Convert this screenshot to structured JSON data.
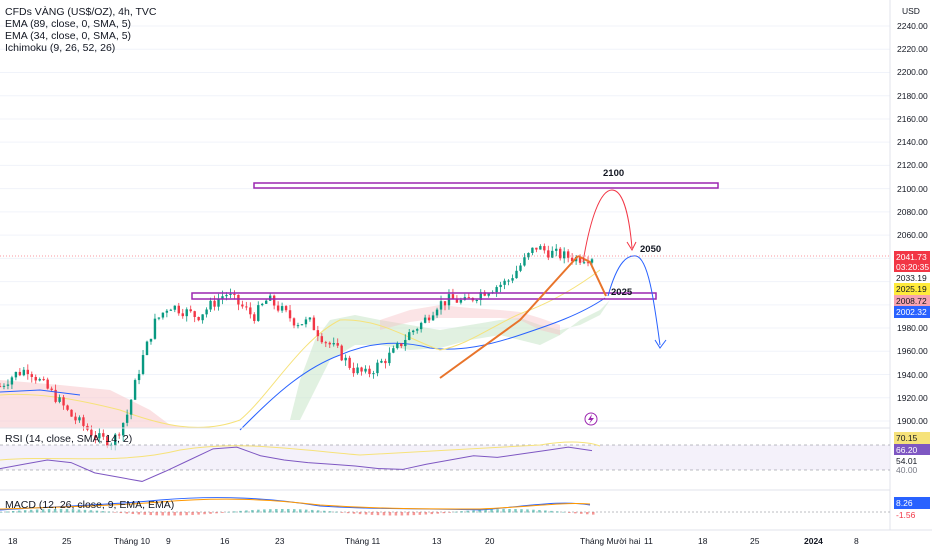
{
  "chart_data": {
    "type": "candlestick",
    "title": "CFDs VÀNG (US$/OZ), 4h, TVC",
    "currency": "USD",
    "indicators": [
      "EMA (89, close, 0, SMA, 5)",
      "EMA (34, close, 0, SMA, 5)",
      "Ichimoku (9, 26, 52, 26)"
    ],
    "ylim": [
      1880,
      2250
    ],
    "y_ticks": [
      "2240.00",
      "2220.00",
      "2200.00",
      "2180.00",
      "2160.00",
      "2140.00",
      "2120.00",
      "2100.00",
      "2080.00",
      "2060.00",
      "2040.00",
      "2020.00",
      "2000.00",
      "1980.00",
      "1960.00",
      "1940.00",
      "1920.00",
      "1900.00"
    ],
    "x_ticks": [
      "18",
      "25",
      "Tháng 10",
      "9",
      "16",
      "23",
      "Tháng 11",
      "13",
      "20",
      "Tháng Mười hai",
      "11",
      "18",
      "25",
      "2024",
      "8"
    ],
    "price_path": [
      1930,
      1940,
      1945,
      1932,
      1920,
      1905,
      1895,
      1885,
      1882,
      1905,
      1950,
      1985,
      2000,
      1995,
      1990,
      2000,
      2010,
      2000,
      1990,
      2005,
      1995,
      1985,
      1985,
      1970,
      1960,
      1945,
      1940,
      1950,
      1960,
      1975,
      1985,
      2000,
      2005,
      2002,
      2010,
      2015,
      2020,
      2035,
      2050,
      2045,
      2042,
      2040,
      2041.73
    ],
    "price_labels": [
      {
        "value": "2041.73",
        "sub": "03:20:35",
        "color": "#f23645"
      },
      {
        "value": "2033.19",
        "color": "#ffffff"
      },
      {
        "value": "2025.19",
        "color": "#ffeb3b"
      },
      {
        "value": "2008.72",
        "color": "#f7a3b0"
      },
      {
        "value": "2002.32",
        "color": "#2962ff"
      }
    ],
    "zones": [
      {
        "name": "2100",
        "low": 2100,
        "high": 2104
      },
      {
        "name": "2025",
        "low": 2025,
        "high": 2028
      }
    ],
    "annotations": [
      "2100",
      "2050",
      "2025"
    ],
    "rsi": {
      "label": "RSI (14, close, SMA, 14, 2)",
      "values": [
        45,
        50,
        55,
        52,
        40,
        35,
        30,
        42,
        55,
        68,
        70,
        60,
        55,
        52,
        50,
        48,
        45,
        44,
        50,
        55,
        60,
        58,
        62,
        66,
        70,
        66
      ],
      "labels": [
        "70.15",
        "66.20",
        "54.01",
        "40.00"
      ]
    },
    "macd": {
      "label": "MACD (12, 26, close, 9, EMA, EMA)",
      "labels": [
        "8.26",
        "-1.56"
      ]
    }
  }
}
